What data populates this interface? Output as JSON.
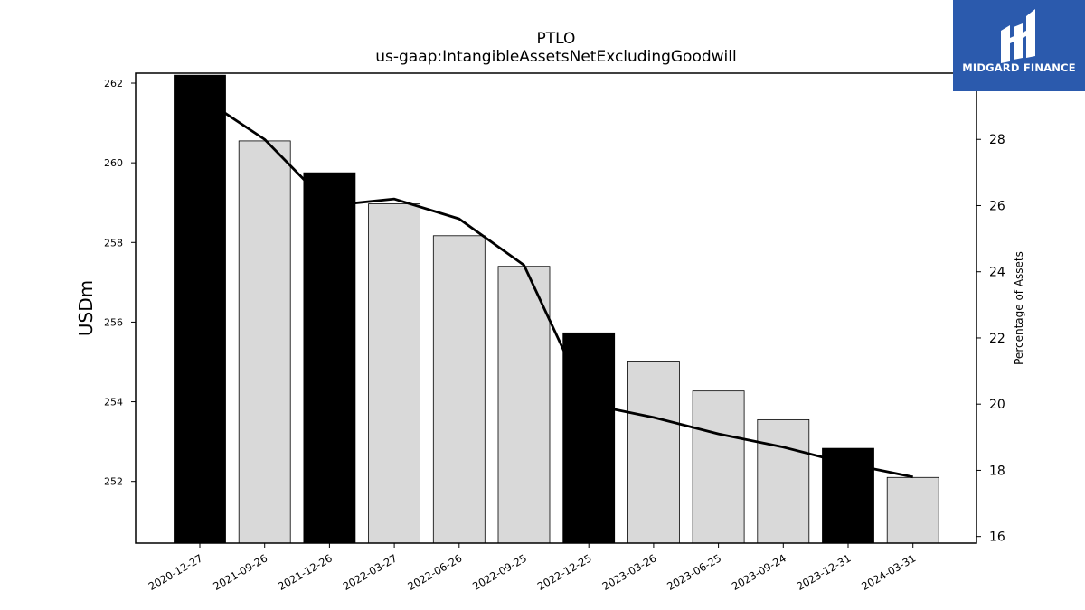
{
  "chart_data": {
    "type": "bar",
    "title": "PTLO",
    "subtitle": "us-gaap:IntangibleAssetsNetExcludingGoodwill",
    "ylabel": "USDm",
    "y2label": "Percentage of Assets",
    "categories": [
      "2020-12-27",
      "2021-09-26",
      "2021-12-26",
      "2022-03-27",
      "2022-06-26",
      "2022-09-25",
      "2022-12-25",
      "2023-03-26",
      "2023-06-25",
      "2023-09-24",
      "2023-12-31",
      "2024-03-31"
    ],
    "series": [
      {
        "type": "bar",
        "values": [
          262.2,
          260.55,
          259.75,
          258.97,
          258.17,
          257.4,
          255.73,
          255.0,
          254.27,
          253.55,
          252.83,
          252.1
        ],
        "highlight": [
          true,
          false,
          true,
          false,
          false,
          false,
          true,
          false,
          false,
          false,
          true,
          false
        ]
      },
      {
        "type": "line",
        "axis": "right",
        "values": [
          29.3,
          28.0,
          26.0,
          26.2,
          25.6,
          24.2,
          20.0,
          19.6,
          19.1,
          18.7,
          18.2,
          17.8
        ]
      }
    ],
    "ylim": [
      250.45,
      262.25
    ],
    "y2lim": [
      15.8,
      30.0
    ],
    "yticks": [
      252,
      254,
      256,
      258,
      260,
      262
    ],
    "y2ticks": [
      16,
      18,
      20,
      22,
      24,
      26,
      28
    ],
    "colors": {
      "highlight_bar": "#000000",
      "normal_bar": "#d9d9d9",
      "line": "#000000"
    },
    "grid": false,
    "legend": "none"
  },
  "logo": {
    "text": "MIDGARD FINANCE",
    "background": "#2b5aad"
  }
}
